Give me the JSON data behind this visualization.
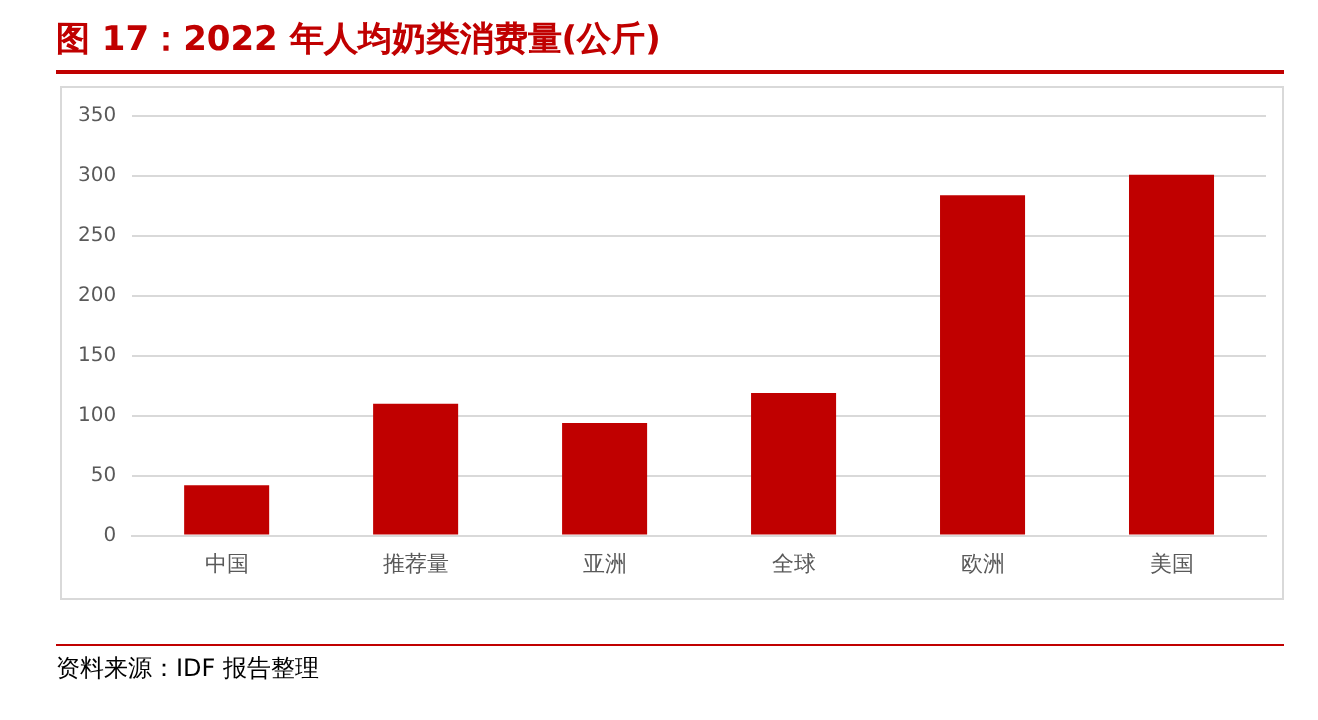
{
  "chart_data": {
    "type": "bar",
    "title": "图 17：2022 年人均奶类消费量(公斤)",
    "categories": [
      "中国",
      "推荐量",
      "亚洲",
      "全球",
      "欧洲",
      "美国"
    ],
    "values": [
      42,
      110,
      94,
      119,
      284,
      301
    ],
    "color": "#c00000",
    "ylim": [
      0,
      350
    ],
    "yticks": [
      0,
      50,
      100,
      150,
      200,
      250,
      300,
      350
    ],
    "grid": "y",
    "annotations": [
      "资料来源：IDF 报告整理"
    ]
  }
}
